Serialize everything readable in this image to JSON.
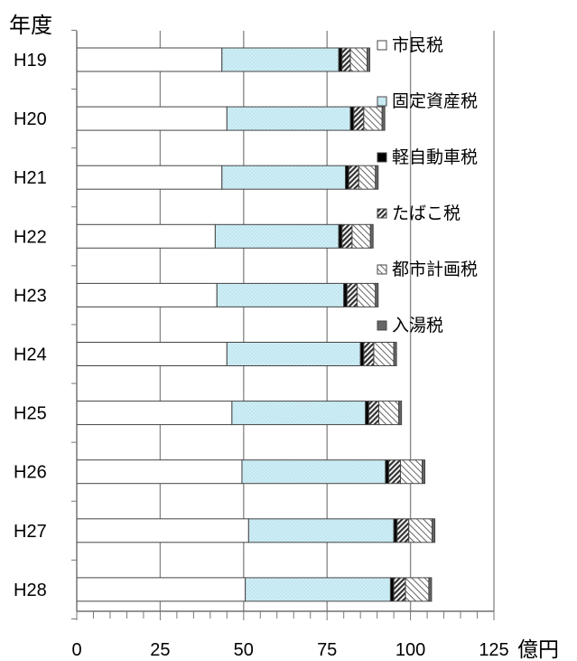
{
  "chart_data": {
    "type": "bar",
    "orientation": "horizontal",
    "stacked": true,
    "ylabel": "年度",
    "xunit": "億円",
    "categories": [
      "H19",
      "H20",
      "H21",
      "H22",
      "H23",
      "H24",
      "H25",
      "H26",
      "H27",
      "H28"
    ],
    "xlim": [
      0,
      125
    ],
    "xticks": [
      0,
      25,
      50,
      75,
      100,
      125
    ],
    "grid": true,
    "legend_position": "right",
    "series": [
      {
        "name": "市民税",
        "values": [
          43.5,
          45.0,
          43.5,
          41.5,
          42.0,
          45.0,
          46.5,
          49.5,
          51.5,
          50.5
        ],
        "color": "#ffffff",
        "pattern": "solid"
      },
      {
        "name": "固定資産税",
        "values": [
          35.0,
          37.0,
          37.0,
          37.0,
          38.0,
          40.0,
          40.0,
          43.0,
          43.5,
          43.5
        ],
        "color": "#cfeef6",
        "pattern": "dots"
      },
      {
        "name": "軽自動車税",
        "values": [
          1.0,
          1.0,
          1.0,
          1.0,
          1.0,
          1.0,
          1.0,
          1.0,
          1.0,
          1.0
        ],
        "color": "#000000",
        "pattern": "solid"
      },
      {
        "name": "たばこ税",
        "values": [
          2.5,
          3.0,
          3.0,
          3.0,
          3.0,
          3.0,
          3.0,
          3.5,
          3.5,
          3.5
        ],
        "color": "#555555",
        "pattern": "dense-hatch"
      },
      {
        "name": "都市計画税",
        "values": [
          5.0,
          5.5,
          5.0,
          5.5,
          5.5,
          6.0,
          6.0,
          6.5,
          7.0,
          7.0
        ],
        "color": "#888888",
        "pattern": "hatch"
      },
      {
        "name": "入湯税",
        "values": [
          0.8,
          0.8,
          0.8,
          0.8,
          0.8,
          0.8,
          0.8,
          0.8,
          0.8,
          0.8
        ],
        "color": "#666666",
        "pattern": "solid"
      }
    ]
  }
}
